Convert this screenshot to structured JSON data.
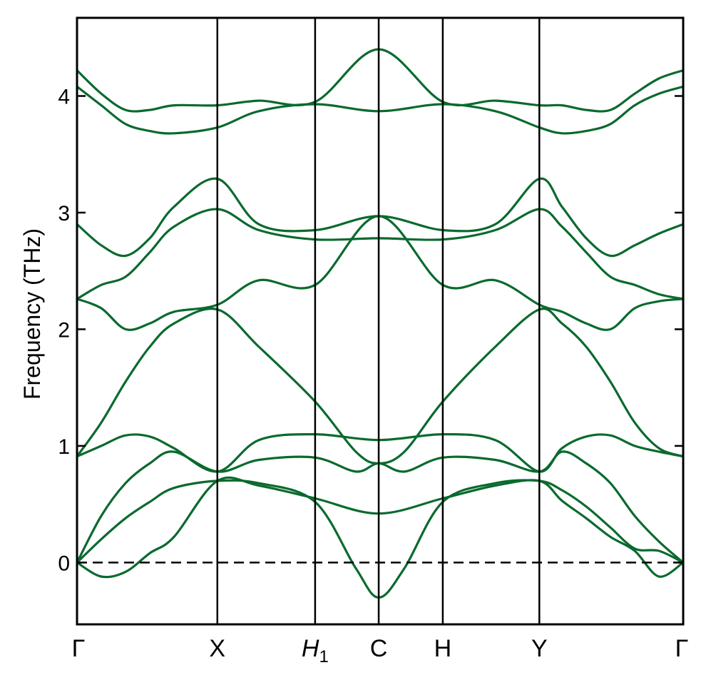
{
  "chart_data": {
    "type": "line",
    "title": "",
    "xlabel": "",
    "ylabel": "Frequency (THz)",
    "ylim": [
      -0.53,
      4.67
    ],
    "yticks": [
      0,
      1,
      2,
      3,
      4
    ],
    "grid": false,
    "zero_line": {
      "y": 0,
      "style": "dashed",
      "color": "#000000"
    },
    "line_color": "#0a6a2e",
    "high_symmetry_points": [
      {
        "label": "Γ",
        "x": 0.0,
        "italic": false
      },
      {
        "label": "X",
        "x": 0.2315
      },
      {
        "label": "H",
        "sub": "1",
        "x": 0.3928,
        "italic": true
      },
      {
        "label": "C",
        "x": 0.4977
      },
      {
        "label": "H",
        "x": 0.6034
      },
      {
        "label": "Y",
        "x": 0.7627
      },
      {
        "label": "Γ",
        "x": 1.0
      }
    ],
    "x_range": [
      0,
      1
    ],
    "series": [
      {
        "x": [
          0,
          0.04,
          0.08,
          0.12,
          0.16,
          0.2315,
          0.3,
          0.3928,
          0.4977,
          0.6034,
          0.69,
          0.7627,
          0.8,
          0.84,
          0.88,
          0.92,
          0.96,
          1.0
        ],
        "y": [
          0.0,
          -0.12,
          -0.08,
          0.08,
          0.22,
          0.7,
          0.66,
          0.55,
          0.42,
          0.55,
          0.66,
          0.7,
          0.53,
          0.38,
          0.22,
          0.1,
          -0.12,
          0.0
        ]
      },
      {
        "x": [
          0,
          0.04,
          0.08,
          0.12,
          0.16,
          0.2315,
          0.3,
          0.3928,
          0.46,
          0.4977,
          0.54,
          0.6034,
          0.69,
          0.7627,
          0.8,
          0.84,
          0.88,
          0.92,
          0.96,
          1.0
        ],
        "y": [
          0.0,
          0.2,
          0.38,
          0.52,
          0.64,
          0.7,
          0.68,
          0.52,
          -0.05,
          -0.3,
          -0.05,
          0.52,
          0.68,
          0.7,
          0.62,
          0.48,
          0.3,
          0.12,
          0.1,
          0.0
        ]
      },
      {
        "x": [
          0,
          0.04,
          0.08,
          0.12,
          0.16,
          0.2315,
          0.3,
          0.3928,
          0.46,
          0.4977,
          0.54,
          0.6034,
          0.69,
          0.7627,
          0.8,
          0.84,
          0.88,
          0.92,
          0.96,
          1.0
        ],
        "y": [
          0.0,
          0.4,
          0.68,
          0.85,
          0.95,
          0.78,
          0.88,
          0.9,
          0.78,
          0.85,
          0.78,
          0.9,
          0.88,
          0.78,
          0.95,
          0.85,
          0.68,
          0.4,
          0.18,
          0.0
        ]
      },
      {
        "x": [
          0,
          0.04,
          0.08,
          0.12,
          0.16,
          0.2315,
          0.3,
          0.3928,
          0.4977,
          0.6034,
          0.69,
          0.7627,
          0.8,
          0.84,
          0.88,
          0.92,
          0.96,
          1.0
        ],
        "y": [
          0.91,
          1.0,
          1.09,
          1.08,
          0.98,
          0.78,
          1.05,
          1.1,
          1.05,
          1.1,
          1.05,
          0.78,
          0.98,
          1.08,
          1.09,
          1.0,
          0.95,
          0.91
        ]
      },
      {
        "x": [
          0,
          0.04,
          0.08,
          0.12,
          0.16,
          0.2315,
          0.3,
          0.3928,
          0.46,
          0.4977,
          0.54,
          0.6034,
          0.69,
          0.7627,
          0.8,
          0.84,
          0.88,
          0.92,
          0.96,
          1.0
        ],
        "y": [
          0.91,
          1.2,
          1.55,
          1.85,
          2.05,
          2.17,
          1.85,
          1.38,
          0.95,
          0.85,
          0.95,
          1.38,
          1.85,
          2.17,
          2.05,
          1.85,
          1.55,
          1.2,
          0.98,
          0.91
        ]
      },
      {
        "x": [
          0,
          0.04,
          0.08,
          0.12,
          0.16,
          0.2315,
          0.3,
          0.3928,
          0.4977,
          0.6034,
          0.69,
          0.7627,
          0.8,
          0.84,
          0.88,
          0.92,
          0.96,
          1.0
        ],
        "y": [
          2.26,
          2.18,
          2.0,
          2.05,
          2.15,
          2.21,
          2.42,
          2.38,
          2.97,
          2.38,
          2.42,
          2.21,
          2.15,
          2.05,
          2.0,
          2.18,
          2.24,
          2.26
        ]
      },
      {
        "x": [
          0,
          0.04,
          0.08,
          0.12,
          0.16,
          0.2315,
          0.3,
          0.3928,
          0.4977,
          0.6034,
          0.69,
          0.7627,
          0.8,
          0.84,
          0.88,
          0.92,
          0.96,
          1.0
        ],
        "y": [
          2.26,
          2.38,
          2.45,
          2.66,
          2.88,
          3.03,
          2.85,
          2.77,
          2.78,
          2.77,
          2.85,
          3.03,
          2.88,
          2.66,
          2.45,
          2.38,
          2.3,
          2.26
        ]
      },
      {
        "x": [
          0,
          0.04,
          0.08,
          0.12,
          0.16,
          0.2315,
          0.3,
          0.3928,
          0.4977,
          0.6034,
          0.69,
          0.7627,
          0.8,
          0.84,
          0.88,
          0.92,
          0.96,
          1.0
        ],
        "y": [
          2.9,
          2.72,
          2.63,
          2.78,
          3.05,
          3.29,
          2.9,
          2.85,
          2.97,
          2.85,
          2.9,
          3.29,
          3.05,
          2.78,
          2.63,
          2.72,
          2.82,
          2.9
        ]
      },
      {
        "x": [
          0,
          0.04,
          0.08,
          0.12,
          0.16,
          0.2315,
          0.3,
          0.3928,
          0.4977,
          0.6034,
          0.69,
          0.7627,
          0.8,
          0.84,
          0.88,
          0.92,
          0.96,
          1.0
        ],
        "y": [
          4.08,
          3.92,
          3.76,
          3.7,
          3.68,
          3.73,
          3.87,
          3.93,
          3.87,
          3.93,
          3.87,
          3.73,
          3.68,
          3.7,
          3.76,
          3.92,
          4.02,
          4.08
        ]
      },
      {
        "x": [
          0,
          0.04,
          0.08,
          0.12,
          0.16,
          0.2315,
          0.3,
          0.3928,
          0.4977,
          0.6034,
          0.69,
          0.7627,
          0.8,
          0.84,
          0.88,
          0.92,
          0.96,
          1.0
        ],
        "y": [
          4.22,
          4.02,
          3.88,
          3.88,
          3.92,
          3.92,
          3.96,
          3.95,
          4.4,
          3.95,
          3.96,
          3.92,
          3.92,
          3.88,
          3.88,
          4.02,
          4.15,
          4.22
        ]
      }
    ]
  }
}
